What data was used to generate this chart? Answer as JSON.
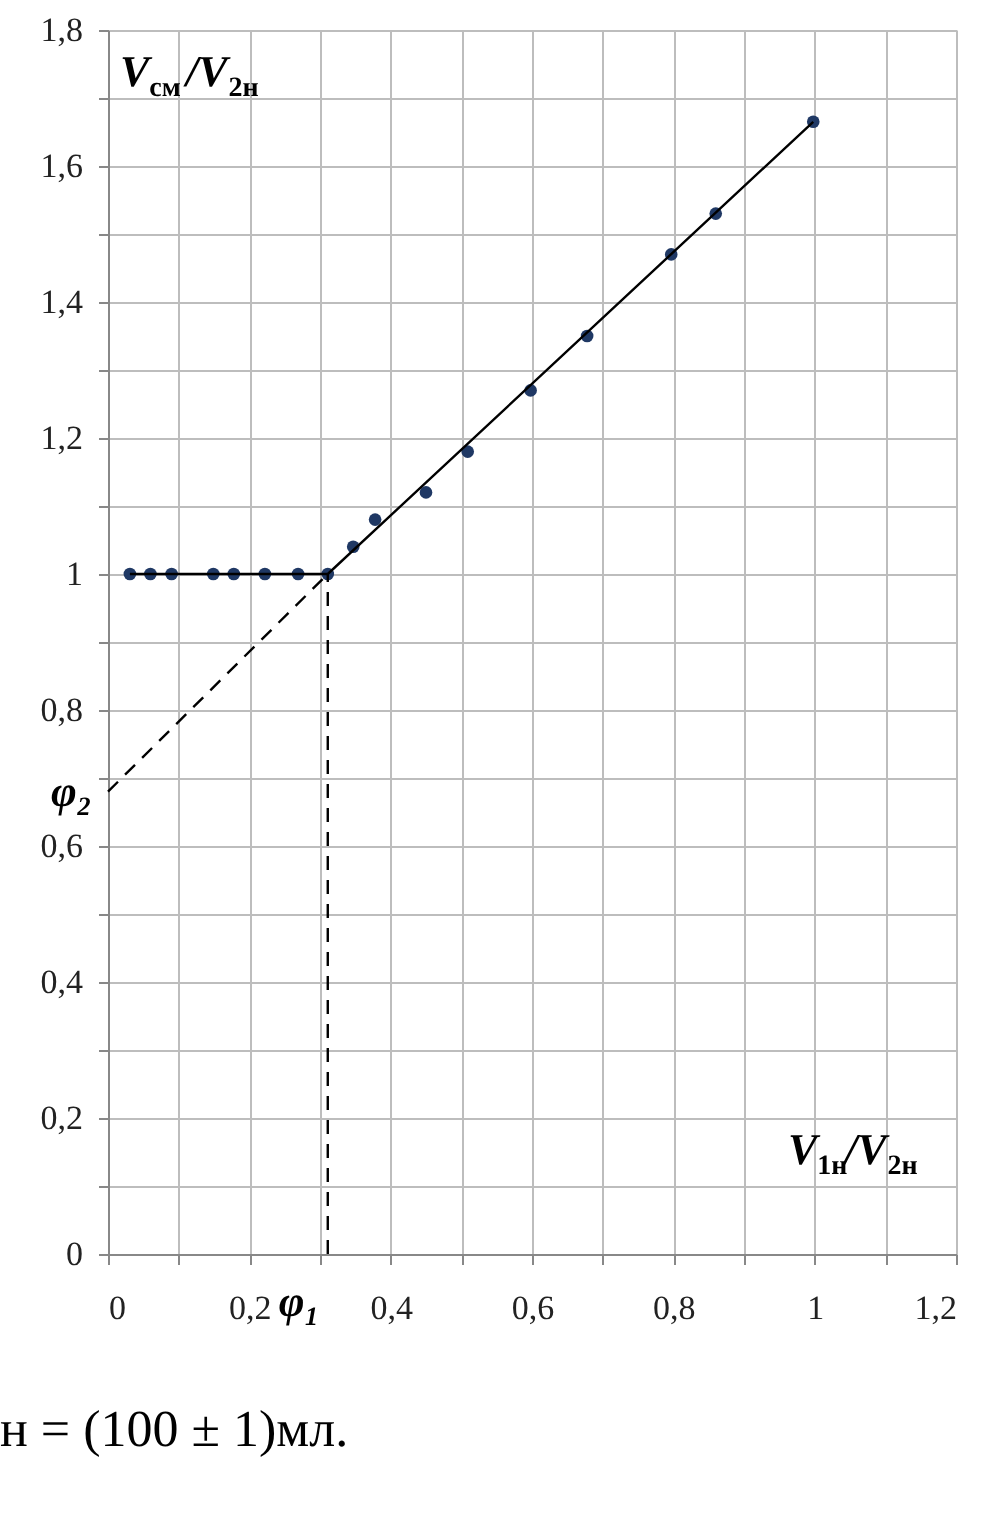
{
  "chart_data": {
    "type": "scatter",
    "xlabel": "V$_{1н}$/V$_{2н}$",
    "ylabel": "V$_{см}$/V$_{2н}$",
    "x": [
      0.031,
      0.06,
      0.09,
      0.149,
      0.178,
      0.222,
      0.269,
      0.311,
      0.347,
      0.378,
      0.45,
      0.509,
      0.598,
      0.678,
      0.797,
      0.86,
      0.998
    ],
    "series": [
      {
        "marker": "circle",
        "color": "#1f3864",
        "values": [
          1,
          1,
          1,
          1,
          1,
          1,
          1,
          1,
          1.04,
          1.08,
          1.12,
          1.18,
          1.27,
          1.35,
          1.47,
          1.53,
          1.665
        ]
      },
      {
        "type": "line",
        "line_style": "solid",
        "color": "#000000",
        "x": [
          0.031,
          0.311,
          0.998
        ],
        "values": [
          1,
          1,
          1.665
        ]
      },
      {
        "type": "line",
        "line_style": "dashed",
        "color": "#000000",
        "x": [
          0,
          0.311
        ],
        "values": [
          0.68,
          1
        ]
      },
      {
        "type": "line",
        "line_style": "dashed",
        "color": "#000000",
        "x": [
          0.311,
          0.311
        ],
        "values": [
          0,
          1
        ]
      }
    ],
    "annotations": [
      {
        "text": "φ₁",
        "x": 0.311,
        "y": 0
      },
      {
        "text": "φ₂",
        "x": 0,
        "y": 0.68
      },
      "н = (100 ± 1)мл."
    ],
    "xlim": [
      0,
      1.2
    ],
    "ylim": [
      0,
      1.8
    ],
    "xticks": [
      0,
      {
        "value": 0.1,
        "label": null
      },
      {
        "value": 0.2,
        "label": "0,2"
      },
      {
        "value": 0.3,
        "label": null
      },
      {
        "value": 0.4,
        "label": "0,4"
      },
      {
        "value": 0.5,
        "label": null
      },
      {
        "value": 0.6,
        "label": "0,6"
      },
      {
        "value": 0.7,
        "label": null
      },
      {
        "value": 0.8,
        "label": "0,8"
      },
      {
        "value": 0.9,
        "label": null
      },
      1,
      {
        "value": 1.1,
        "label": null
      },
      {
        "value": 1.2,
        "label": "1,2"
      }
    ],
    "yticks": [
      0,
      {
        "value": 0.1,
        "label": null
      },
      {
        "value": 0.2,
        "label": "0,2"
      },
      {
        "value": 0.3,
        "label": null
      },
      {
        "value": 0.4,
        "label": "0,4"
      },
      {
        "value": 0.5,
        "label": null
      },
      {
        "value": 0.6,
        "label": "0,6"
      },
      {
        "value": 0.7,
        "label": null
      },
      {
        "value": 0.8,
        "label": "0,8"
      },
      {
        "value": 0.9,
        "label": null
      },
      1,
      {
        "value": 1.1,
        "label": null
      },
      {
        "value": 1.2,
        "label": "1,2"
      },
      {
        "value": 1.3,
        "label": null
      },
      {
        "value": 1.4,
        "label": "1,4"
      },
      {
        "value": 1.5,
        "label": null
      },
      {
        "value": 1.6,
        "label": "1,6"
      },
      {
        "value": 1.7,
        "label": null
      },
      {
        "value": 1.8,
        "label": "1,8"
      }
    ],
    "grid": true
  }
}
